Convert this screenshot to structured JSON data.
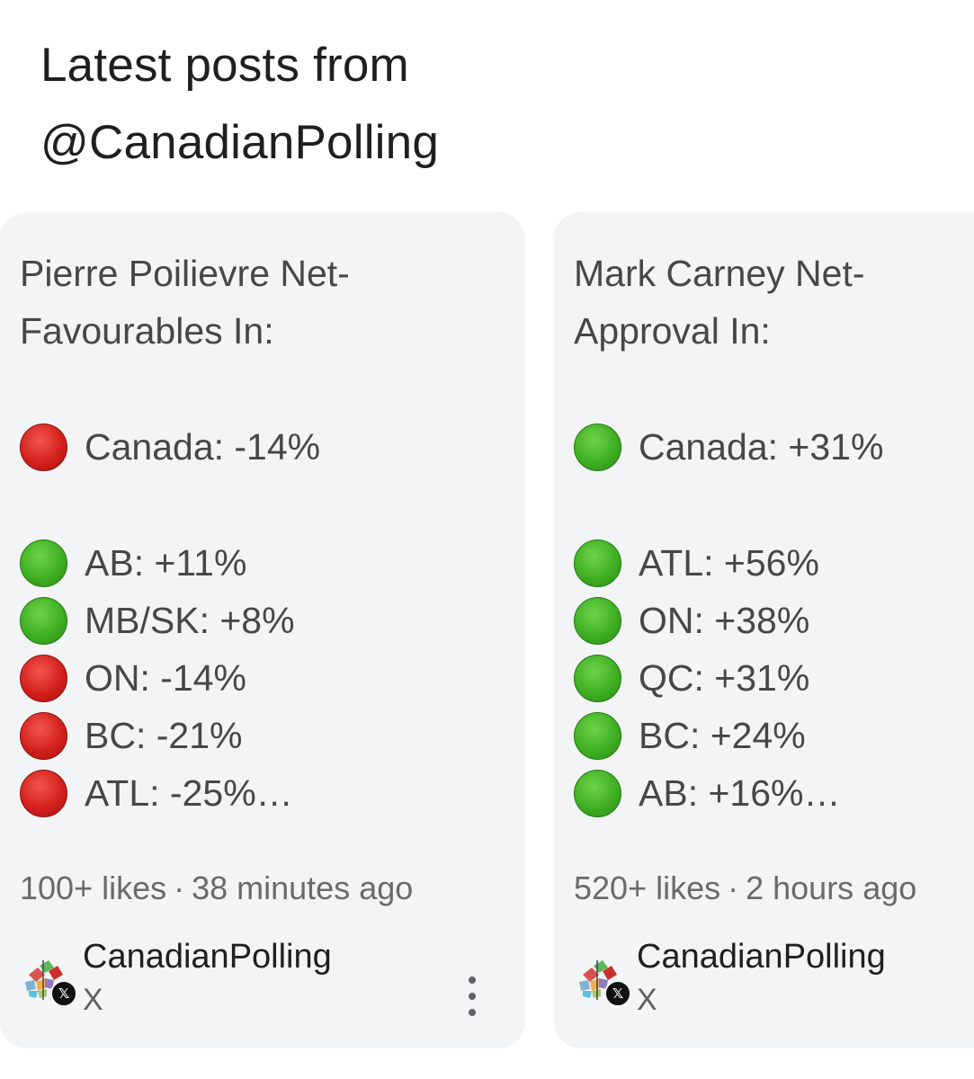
{
  "heading": {
    "line1": "Latest posts from",
    "line2": "@CanadianPolling"
  },
  "colors": {
    "negative": "#d4201c",
    "positive": "#3faf23",
    "card_background": "#f3f4f6"
  },
  "posts": [
    {
      "title_line1": "Pierre Poilievre Net-",
      "title_line2": "Favourables In:",
      "overall": {
        "status": "negative",
        "icon": "red-circle-icon",
        "text": "Canada: -14%"
      },
      "regions": [
        {
          "status": "positive",
          "icon": "green-circle-icon",
          "text": "AB: +11%"
        },
        {
          "status": "positive",
          "icon": "green-circle-icon",
          "text": "MB/SK: +8%"
        },
        {
          "status": "negative",
          "icon": "red-circle-icon",
          "text": "ON: -14%"
        },
        {
          "status": "negative",
          "icon": "red-circle-icon",
          "text": "BC: -21%"
        },
        {
          "status": "negative",
          "icon": "red-circle-icon",
          "text": "ATL: -25%…"
        }
      ],
      "likes": "100+ likes",
      "separator": "·",
      "time": "38 minutes ago",
      "author": "CanadianPolling",
      "source": "X",
      "avatar_icon": "canadian-polling-logo-icon",
      "more_icon": "more-vert-icon"
    },
    {
      "title_line1": "Mark Carney Net-",
      "title_line2": "Approval In:",
      "overall": {
        "status": "positive",
        "icon": "green-circle-icon",
        "text": "Canada: +31%"
      },
      "regions": [
        {
          "status": "positive",
          "icon": "green-circle-icon",
          "text": "ATL: +56%"
        },
        {
          "status": "positive",
          "icon": "green-circle-icon",
          "text": "ON: +38%"
        },
        {
          "status": "positive",
          "icon": "green-circle-icon",
          "text": "QC: +31%"
        },
        {
          "status": "positive",
          "icon": "green-circle-icon",
          "text": "BC: +24%"
        },
        {
          "status": "positive",
          "icon": "green-circle-icon",
          "text": "AB: +16%…"
        }
      ],
      "likes": "520+ likes",
      "separator": "·",
      "time": "2 hours ago",
      "author": "CanadianPolling",
      "source": "X",
      "avatar_icon": "canadian-polling-logo-icon"
    }
  ]
}
